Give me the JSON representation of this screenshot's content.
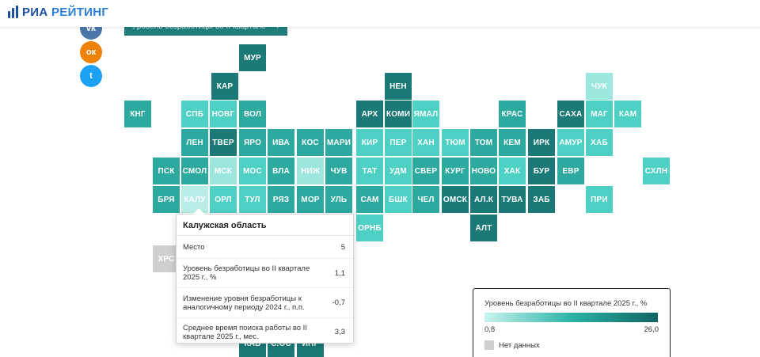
{
  "brand": {
    "part1": "РИА",
    "part2": "РЕЙТИНГ"
  },
  "selector": {
    "label": "Уровень безработицы во II квартале",
    "caret": "▾"
  },
  "social": [
    {
      "name": "vk-icon",
      "glyph": "vk",
      "color": "#4a76a8"
    },
    {
      "name": "ok-icon",
      "glyph": "ок",
      "color": "#ee8208"
    },
    {
      "name": "twitter-icon",
      "glyph": "t",
      "color": "#1da1f2"
    }
  ],
  "tiles": [
    {
      "label": "МУР",
      "shade": "dark"
    },
    {
      "label": "КАР",
      "shade": "dark"
    },
    {
      "label": "НЕН",
      "shade": "dark"
    },
    {
      "label": "ЧУК",
      "shade": "pale"
    },
    {
      "label": "КНГ",
      "shade": "mid"
    },
    {
      "label": "СПБ",
      "shade": "light"
    },
    {
      "label": "НОВГ",
      "shade": "light"
    },
    {
      "label": "ВОЛ",
      "shade": "mid"
    },
    {
      "label": "АРХ",
      "shade": "dark"
    },
    {
      "label": "КОМИ",
      "shade": "dark"
    },
    {
      "label": "ЯМАЛ",
      "shade": "light"
    },
    {
      "label": "КРАС",
      "shade": "mid"
    },
    {
      "label": "САХА",
      "shade": "dark"
    },
    {
      "label": "МАГ",
      "shade": "light"
    },
    {
      "label": "КАМ",
      "shade": "light"
    },
    {
      "label": "ЛЕН",
      "shade": "mid"
    },
    {
      "label": "ТВЕР",
      "shade": "dark"
    },
    {
      "label": "ЯРО",
      "shade": "mid"
    },
    {
      "label": "ИВА",
      "shade": "mid"
    },
    {
      "label": "КОС",
      "shade": "mid"
    },
    {
      "label": "МАРИ",
      "shade": "mid"
    },
    {
      "label": "КИР",
      "shade": "light"
    },
    {
      "label": "ПЕР",
      "shade": "light"
    },
    {
      "label": "ХАН",
      "shade": "light"
    },
    {
      "label": "ТЮМ",
      "shade": "light"
    },
    {
      "label": "ТОМ",
      "shade": "mid"
    },
    {
      "label": "КЕМ",
      "shade": "mid"
    },
    {
      "label": "ИРК",
      "shade": "dark"
    },
    {
      "label": "АМУР",
      "shade": "light"
    },
    {
      "label": "ХАБ",
      "shade": "light"
    },
    {
      "label": "ПСК",
      "shade": "mid"
    },
    {
      "label": "СМОЛ",
      "shade": "mid"
    },
    {
      "label": "МСК",
      "shade": "pale"
    },
    {
      "label": "МОС",
      "shade": "light"
    },
    {
      "label": "ВЛА",
      "shade": "mid"
    },
    {
      "label": "НИЖ",
      "shade": "pale"
    },
    {
      "label": "ЧУВ",
      "shade": "mid"
    },
    {
      "label": "ТАТ",
      "shade": "light"
    },
    {
      "label": "УДМ",
      "shade": "light"
    },
    {
      "label": "СВЕР",
      "shade": "mid"
    },
    {
      "label": "КУРГ",
      "shade": "mid"
    },
    {
      "label": "НОВО",
      "shade": "mid"
    },
    {
      "label": "ХАК",
      "shade": "light"
    },
    {
      "label": "БУР",
      "shade": "dark"
    },
    {
      "label": "ЕВР",
      "shade": "mid"
    },
    {
      "label": "СХЛН",
      "shade": "light"
    },
    {
      "label": "БРЯ",
      "shade": "mid"
    },
    {
      "label": "КАЛУ",
      "shade": "sel"
    },
    {
      "label": "ОРЛ",
      "shade": "light"
    },
    {
      "label": "ТУЛ",
      "shade": "light"
    },
    {
      "label": "РЯЗ",
      "shade": "mid"
    },
    {
      "label": "МОР",
      "shade": "mid"
    },
    {
      "label": "УЛЬ",
      "shade": "mid"
    },
    {
      "label": "САМ",
      "shade": "mid"
    },
    {
      "label": "БШК",
      "shade": "light"
    },
    {
      "label": "ЧЕЛ",
      "shade": "mid"
    },
    {
      "label": "ОМСК",
      "shade": "dark"
    },
    {
      "label": "АЛ.К",
      "shade": "dark"
    },
    {
      "label": "ТУВА",
      "shade": "dark"
    },
    {
      "label": "ЗАБ",
      "shade": "dark"
    },
    {
      "label": "ПРИ",
      "shade": "light"
    },
    {
      "label": "ОРНБ",
      "shade": "light"
    },
    {
      "label": "АЛТ",
      "shade": "dark"
    },
    {
      "label": "ХРС",
      "shade": "nodata"
    },
    {
      "label": "КАБ",
      "shade": "dark"
    },
    {
      "label": "С.ОС",
      "shade": "dark"
    },
    {
      "label": "ИНГ",
      "shade": "dark"
    }
  ],
  "tooltip": {
    "title": "Калужская область",
    "rows": [
      {
        "label": "Место",
        "value": "5"
      },
      {
        "label": "Уровень безработицы во II квартале 2025 г., %",
        "value": "1,1"
      },
      {
        "label": "Изменение уровня безработицы к аналогичному периоду 2024 г., п.п.",
        "value": "-0,7"
      },
      {
        "label": "Среднее время поиска работы во II квартале 2025 г., мес.",
        "value": "3,3"
      }
    ]
  },
  "legend": {
    "title": "Уровень безработицы во II квартале 2025 г., %",
    "min": "0,8",
    "max": "26,0",
    "no_data": "Нет данных"
  }
}
